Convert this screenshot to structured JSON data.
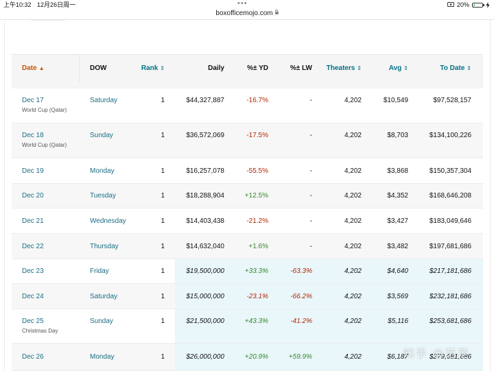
{
  "status_bar": {
    "time": "上午10:32",
    "date": "12月26日周一",
    "battery_percent": "20%",
    "battery_level": 0.2,
    "icons": [
      "screen-mirror-icon",
      "battery-icon",
      "charging-bolt-icon"
    ]
  },
  "address_bar": {
    "url": "boxofficemojo.com",
    "lock_icon": "lock-icon"
  },
  "table": {
    "headers": {
      "date": "Date",
      "dow": "DOW",
      "rank": "Rank",
      "daily": "Daily",
      "pct_yd": "%± YD",
      "pct_lw": "%± LW",
      "theaters": "Theaters",
      "avg": "Avg",
      "to_date": "To Date"
    },
    "sort_icons": {
      "date": "sort-asc-icon",
      "rank": "sort-both-icon",
      "theaters": "sort-both-icon",
      "avg": "sort-both-icon",
      "to_date": "sort-both-icon"
    },
    "rows": [
      {
        "date": "Dec 17",
        "note": "World Cup (Qatar)",
        "dow": "Saturday",
        "rank": "1",
        "daily": "$44,327,887",
        "pct_yd": "-16.7%",
        "pct_lw": "-",
        "theaters": "4,202",
        "avg": "$10,549",
        "to_date": "$97,528,157"
      },
      {
        "date": "Dec 18",
        "note": "World Cup (Qatar)",
        "dow": "Sunday",
        "rank": "1",
        "daily": "$36,572,069",
        "pct_yd": "-17.5%",
        "pct_lw": "-",
        "theaters": "4,202",
        "avg": "$8,703",
        "to_date": "$134,100,226"
      },
      {
        "date": "Dec 19",
        "note": "",
        "dow": "Monday",
        "rank": "1",
        "daily": "$16,257,078",
        "pct_yd": "-55.5%",
        "pct_lw": "-",
        "theaters": "4,202",
        "avg": "$3,868",
        "to_date": "$150,357,304"
      },
      {
        "date": "Dec 20",
        "note": "",
        "dow": "Tuesday",
        "rank": "1",
        "daily": "$18,288,904",
        "pct_yd": "+12.5%",
        "pct_lw": "-",
        "theaters": "4,202",
        "avg": "$4,352",
        "to_date": "$168,646,208"
      },
      {
        "date": "Dec 21",
        "note": "",
        "dow": "Wednesday",
        "rank": "1",
        "daily": "$14,403,438",
        "pct_yd": "-21.2%",
        "pct_lw": "-",
        "theaters": "4,202",
        "avg": "$3,427",
        "to_date": "$183,049,646"
      },
      {
        "date": "Dec 22",
        "note": "",
        "dow": "Thursday",
        "rank": "1",
        "daily": "$14,632,040",
        "pct_yd": "+1.6%",
        "pct_lw": "-",
        "theaters": "4,202",
        "avg": "$3,482",
        "to_date": "$197,681,686"
      },
      {
        "date": "Dec 23",
        "note": "",
        "dow": "Friday",
        "rank": "1",
        "daily": "$19,500,000",
        "pct_yd": "+33.3%",
        "pct_lw": "-63.3%",
        "theaters": "4,202",
        "avg": "$4,640",
        "to_date": "$217,181,686"
      },
      {
        "date": "Dec 24",
        "note": "",
        "dow": "Saturday",
        "rank": "1",
        "daily": "$15,000,000",
        "pct_yd": "-23.1%",
        "pct_lw": "-66.2%",
        "theaters": "4,202",
        "avg": "$3,569",
        "to_date": "$232,181,686"
      },
      {
        "date": "Dec 25",
        "note": "Christmas Day",
        "dow": "Sunday",
        "rank": "1",
        "daily": "$21,500,000",
        "pct_yd": "+43.3%",
        "pct_lw": "-41.2%",
        "theaters": "4,202",
        "avg": "$5,116",
        "to_date": "$253,681,686"
      },
      {
        "date": "Dec 26",
        "note": "",
        "dow": "Monday",
        "rank": "1",
        "daily": "$26,000,000",
        "pct_yd": "+20.9%",
        "pct_lw": "+59.9%",
        "theaters": "4,202",
        "avg": "$6,187",
        "to_date": "$279,681,686"
      }
    ]
  },
  "watermark": "知乎 @范范",
  "colors": {
    "date_header": "#c45500",
    "link_teal": "#1b6e84",
    "negative": "#b12704",
    "positive": "#35862a",
    "estimate_bg": "#e9f7fb",
    "alt_row": "#f7f7f7",
    "battery": "#34c759"
  }
}
